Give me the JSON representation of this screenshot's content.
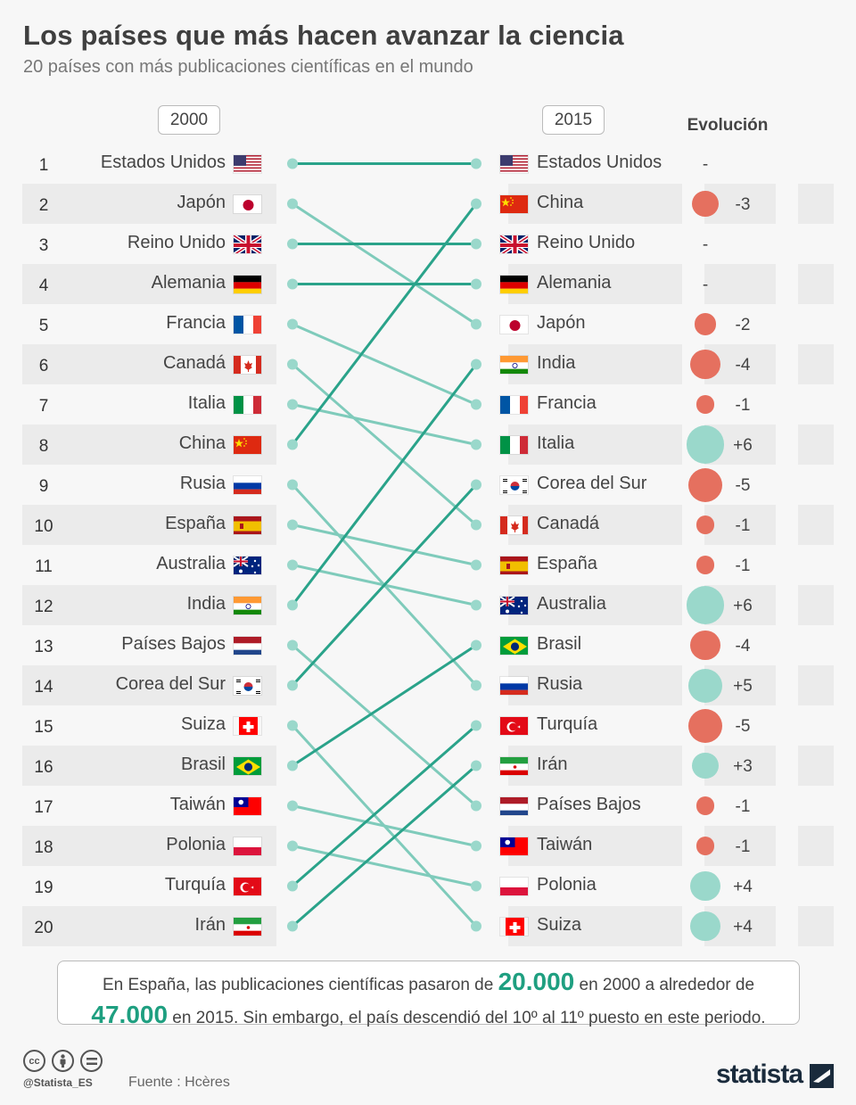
{
  "header": {
    "title": "Los países que más hacen avanzar la ciencia",
    "subtitle": "20 países con más publicaciones científicas en el mundo"
  },
  "columns": {
    "left": "2000",
    "right": "2015",
    "evolution": "Evolución"
  },
  "chart_data": {
    "type": "slope",
    "ranks": [
      1,
      2,
      3,
      4,
      5,
      6,
      7,
      8,
      9,
      10,
      11,
      12,
      13,
      14,
      15,
      16,
      17,
      18,
      19,
      20
    ],
    "ranking_2000": [
      "Estados Unidos",
      "Japón",
      "Reino Unido",
      "Alemania",
      "Francia",
      "Canadá",
      "Italia",
      "China",
      "Rusia",
      "España",
      "Australia",
      "India",
      "Países Bajos",
      "Corea del Sur",
      "Suiza",
      "Brasil",
      "Taiwán",
      "Polonia",
      "Turquía",
      "Irán"
    ],
    "ranking_2015": [
      "Estados Unidos",
      "China",
      "Reino Unido",
      "Alemania",
      "Japón",
      "India",
      "Francia",
      "Italia",
      "Corea del Sur",
      "Canadá",
      "España",
      "Australia",
      "Brasil",
      "Rusia",
      "Turquía",
      "Irán",
      "Países Bajos",
      "Taiwán",
      "Polonia",
      "Suiza"
    ],
    "flags_2000": [
      "us",
      "jp",
      "gb",
      "de",
      "fr",
      "ca",
      "it",
      "cn",
      "ru",
      "es",
      "au",
      "in",
      "nl",
      "kr",
      "ch",
      "br",
      "tw",
      "pl",
      "tr",
      "ir"
    ],
    "flags_2015": [
      "us",
      "cn",
      "gb",
      "de",
      "jp",
      "in",
      "fr",
      "it",
      "kr",
      "ca",
      "es",
      "au",
      "br",
      "ru",
      "tr",
      "ir",
      "nl",
      "tw",
      "pl",
      "ch"
    ],
    "evolution_labels": [
      "-",
      "-3",
      "-",
      "-",
      "-2",
      "-4",
      "-1",
      "+6",
      "-5",
      "-1",
      "-1",
      "+6",
      "-4",
      "+5",
      "-5",
      "+3",
      "-1",
      "-1",
      "+4",
      "+4"
    ],
    "evolution_values": [
      0,
      -3,
      0,
      0,
      -2,
      -4,
      -1,
      6,
      -5,
      -1,
      -1,
      6,
      -4,
      5,
      -5,
      3,
      -1,
      -1,
      4,
      4
    ],
    "colors": {
      "rise": "#9ad8cb",
      "fall": "#e5705f",
      "line_light": "#7fcbbb",
      "line_dark": "#2aa38a"
    }
  },
  "note": {
    "part1": "En España, las publicaciones científicas pasaron de ",
    "value1": "20.000",
    "part2": " en 2000 a alrededor de ",
    "value2": "47.000",
    "part3": " en 2015. Sin embargo, el país descendió del 10º al 11º puesto en este periodo."
  },
  "footer": {
    "license_icons": [
      "cc-icon",
      "by-icon",
      "equals-icon"
    ],
    "cc_label": "cc",
    "handle": "@Statista_ES",
    "source": "Fuente : Hcères",
    "logo": "statista"
  }
}
